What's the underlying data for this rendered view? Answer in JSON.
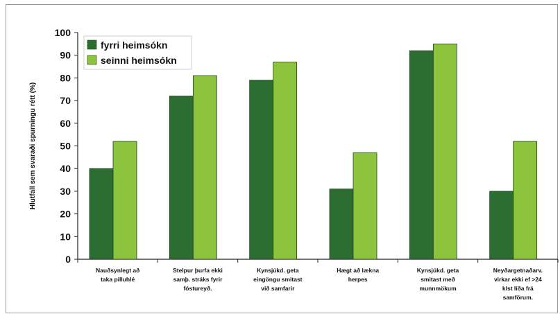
{
  "chart_data": {
    "type": "bar",
    "categories": [
      [
        "Nauðsynlegt að",
        "taka pilluhlé"
      ],
      [
        "Stelpur þurfa ekki",
        "samþ. stráks fyrir",
        "fóstureyð."
      ],
      [
        "Kynsjúkd. geta",
        "eingöngu smitast",
        "við samfarir"
      ],
      [
        "Hægt að lækna",
        "herpes"
      ],
      [
        "Kynsjúkd. geta",
        "smitast með",
        "munnmökum"
      ],
      [
        "Neyðargetnaðarv.",
        "virkar ekki ef >24",
        "klst líða frá",
        "samförum."
      ]
    ],
    "series": [
      {
        "name": "fyrri heimsókn",
        "color": "#2c6e31",
        "values": [
          40,
          72,
          79,
          31,
          92,
          30
        ]
      },
      {
        "name": "seinni heimsókn",
        "color": "#8cc43e",
        "values": [
          52,
          81,
          87,
          47,
          95,
          52
        ]
      }
    ],
    "ylabel": "Hlutfall sem svaraði spurningu rétt (%)",
    "ylim": [
      0,
      100
    ],
    "yticks": [
      0,
      10,
      20,
      30,
      40,
      50,
      60,
      70,
      80,
      90,
      100
    ],
    "grid": false,
    "legend": "top-left"
  }
}
